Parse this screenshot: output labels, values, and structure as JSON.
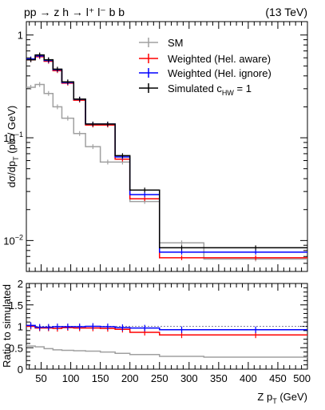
{
  "chart_data": [
    {
      "type": "line",
      "subtype": "step-histogram",
      "title": "pp → z h → l⁺ l⁻ b b",
      "title_right": "(13 TeV)",
      "xlabel": "",
      "ylabel": "dσ/dp_T (pb / GeV)",
      "ylabel_parts": {
        "main": "dσ/dp",
        "sub": "T",
        "rest": " (pb / GeV)"
      },
      "xlim": [
        25,
        500
      ],
      "ylim": [
        0.005,
        1.35
      ],
      "yscale": "log",
      "bin_edges": [
        25,
        40,
        55,
        70,
        85,
        105,
        125,
        150,
        175,
        200,
        250,
        325,
        500
      ],
      "ytick_labels": [
        {
          "value": 1,
          "label": "1",
          "exp": ""
        },
        {
          "value": 0.1,
          "label": "10",
          "exp": "−1"
        },
        {
          "value": 0.01,
          "label": "10",
          "exp": "−2"
        }
      ],
      "legend_placement": "top-right",
      "series": [
        {
          "name": "SM",
          "color": "#a0a0a0",
          "key": "sm",
          "values": [
            0.31,
            0.33,
            0.27,
            0.2,
            0.155,
            0.11,
            0.082,
            0.058,
            0.058,
            0.024,
            0.0095,
            0.0066
          ]
        },
        {
          "name": "Weighted (Hel. aware)",
          "color": "#ff0000",
          "key": "aware",
          "values": [
            0.575,
            0.615,
            0.555,
            0.45,
            0.34,
            0.232,
            0.133,
            0.133,
            0.062,
            0.0255,
            0.0068,
            0.0068
          ]
        },
        {
          "name": "Weighted (Hel. ignore)",
          "color": "#0000ff",
          "key": "ignore",
          "values": [
            0.585,
            0.625,
            0.565,
            0.46,
            0.345,
            0.237,
            0.136,
            0.136,
            0.065,
            0.028,
            0.0077,
            0.0077
          ]
        },
        {
          "name": "Simulated",
          "legend_parts": {
            "main": "Simulated  c",
            "sub": "HW",
            "rest": " = 1"
          },
          "color": "#000000",
          "key": "sim",
          "values": [
            0.575,
            0.64,
            0.575,
            0.465,
            0.35,
            0.238,
            0.136,
            0.136,
            0.067,
            0.031,
            0.0085,
            0.0085
          ]
        }
      ]
    },
    {
      "type": "line",
      "subtype": "ratio-step",
      "xlabel": "Z p_T (GeV)",
      "xlabel_parts": {
        "main": "Z p",
        "sub": "T",
        "rest": " (GeV)"
      },
      "ylabel": "Ratio to simulated",
      "xlim": [
        25,
        500
      ],
      "ylim": [
        0,
        2
      ],
      "yticks": [
        0,
        0.5,
        1,
        1.5,
        2
      ],
      "ytick_labels": [
        "0",
        "0.5",
        "1",
        "1.5",
        "2"
      ],
      "xticks": [
        50,
        100,
        150,
        200,
        250,
        300,
        350,
        400,
        450,
        500
      ],
      "xtick_labels": [
        "50",
        "100",
        "150",
        "200",
        "250",
        "300",
        "350",
        "400",
        "450",
        "500"
      ],
      "reference_line": 1,
      "bin_edges": [
        25,
        40,
        55,
        70,
        85,
        105,
        125,
        150,
        175,
        200,
        250,
        325,
        500
      ],
      "series": [
        {
          "name": "SM",
          "color": "#a0a0a0",
          "key": "sm",
          "values": [
            0.54,
            0.52,
            0.48,
            0.45,
            0.44,
            0.43,
            0.42,
            0.4,
            0.37,
            0.34,
            0.3,
            0.28
          ]
        },
        {
          "name": "Weighted (Hel. aware)",
          "color": "#ff0000",
          "key": "aware",
          "values": [
            1.0,
            0.96,
            0.96,
            0.95,
            0.97,
            0.96,
            0.96,
            0.95,
            0.93,
            0.86,
            0.8,
            0.8
          ]
        },
        {
          "name": "Weighted (Hel. ignore)",
          "color": "#0000ff",
          "key": "ignore",
          "values": [
            1.02,
            0.98,
            0.98,
            0.99,
            0.99,
            0.99,
            1.0,
            0.99,
            0.97,
            0.96,
            0.92,
            0.92
          ]
        }
      ]
    }
  ]
}
